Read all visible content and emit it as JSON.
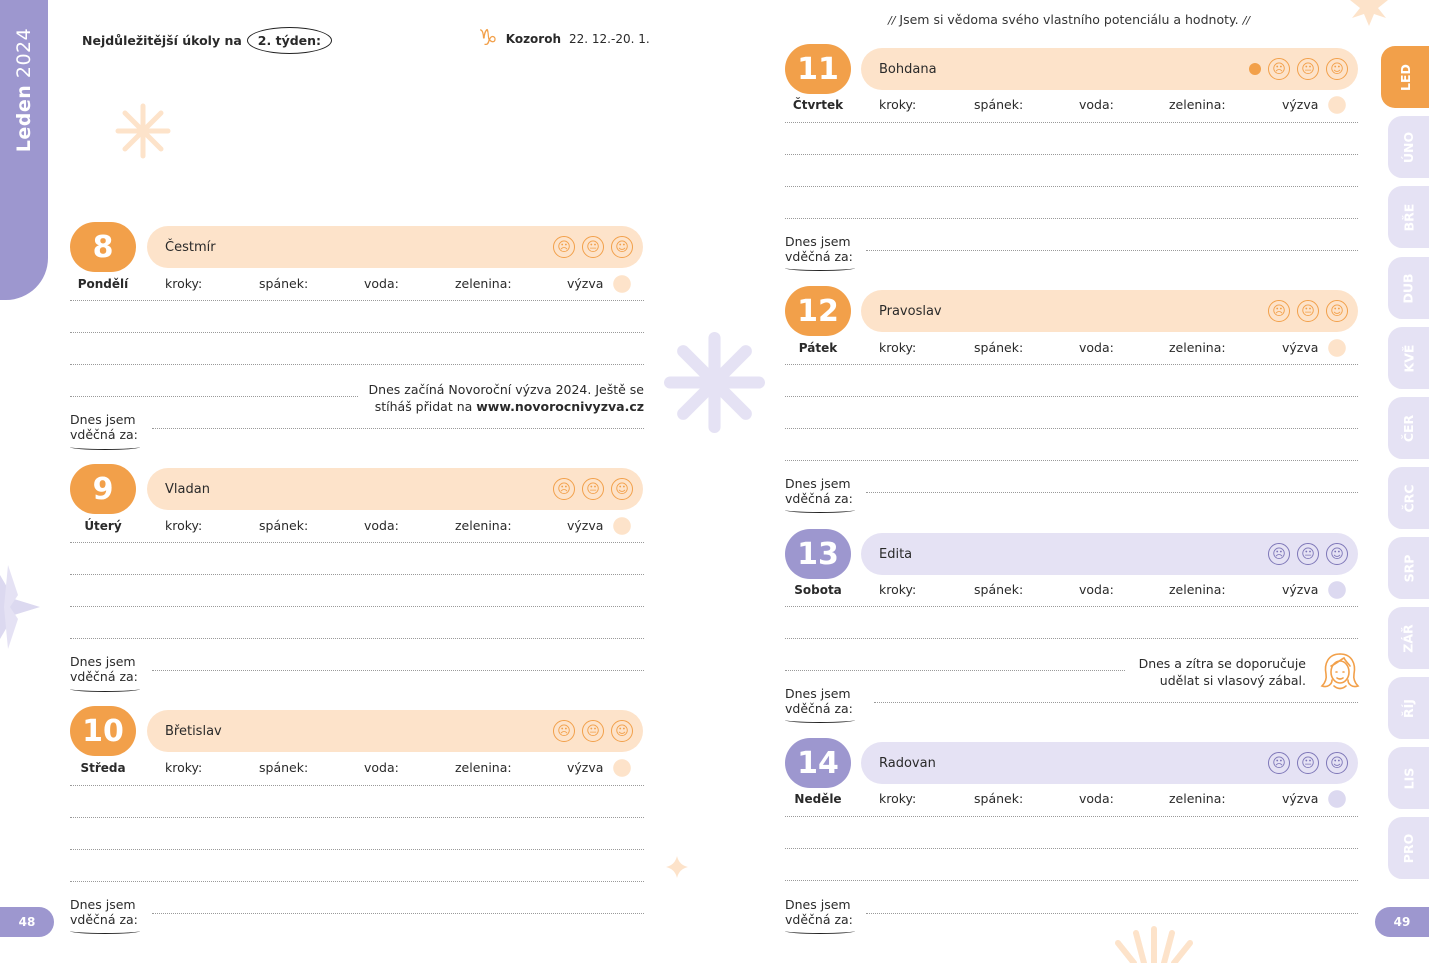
{
  "left_page": {
    "side_tab": {
      "month": "Leden",
      "year": "2024"
    },
    "page_number": "48",
    "header": {
      "label": "Nejdůležitější úkoly na",
      "week": "2. týden:"
    },
    "zodiac": {
      "symbol": "♑",
      "name": "Kozoroh",
      "dates": "22. 12.-20. 1."
    }
  },
  "right_page": {
    "quote": "Jsem si vědoma svého vlastního potenciálu a hodnoty.",
    "page_number": "49"
  },
  "stats_labels": {
    "steps": "kroky:",
    "sleep": "spánek:",
    "water": "voda:",
    "veg": "zelenina:",
    "challenge": "výzva"
  },
  "grateful": {
    "line1": "Dnes jsem",
    "line2": "vděčná za:"
  },
  "days": [
    {
      "num": "8",
      "name": "Pondělí",
      "nameday": "Čestmír",
      "theme": "orange"
    },
    {
      "num": "9",
      "name": "Úterý",
      "nameday": "Vladan",
      "theme": "orange"
    },
    {
      "num": "10",
      "name": "Středa",
      "nameday": "Břetislav",
      "theme": "orange"
    },
    {
      "num": "11",
      "name": "Čtvrtek",
      "nameday": "Bohdana",
      "theme": "orange"
    },
    {
      "num": "12",
      "name": "Pátek",
      "nameday": "Pravoslav",
      "theme": "orange"
    },
    {
      "num": "13",
      "name": "Sobota",
      "nameday": "Edita",
      "theme": "purple"
    },
    {
      "num": "14",
      "name": "Neděle",
      "nameday": "Radovan",
      "theme": "purple"
    }
  ],
  "notes": {
    "challenge": {
      "line1": "Dnes začíná Novoroční výzva 2024. Ještě se",
      "line2_prefix": "stíháš přidat na ",
      "link": "www.novorocnivyzva.cz"
    },
    "hair": {
      "line1": "Dnes a zítra se doporučuje",
      "line2": "udělat si vlasový zábal."
    }
  },
  "month_tabs": [
    "LED",
    "ÚNO",
    "BŘE",
    "DUB",
    "KVĚ",
    "ČER",
    "ČRC",
    "SRP",
    "ZÁŘ",
    "ŘÍJ",
    "LIS",
    "PRO"
  ],
  "colors": {
    "orange": "#f2a04a",
    "orange_light": "#fde3ca",
    "purple": "#9d97cf",
    "purple_light": "#e5e2f4"
  }
}
